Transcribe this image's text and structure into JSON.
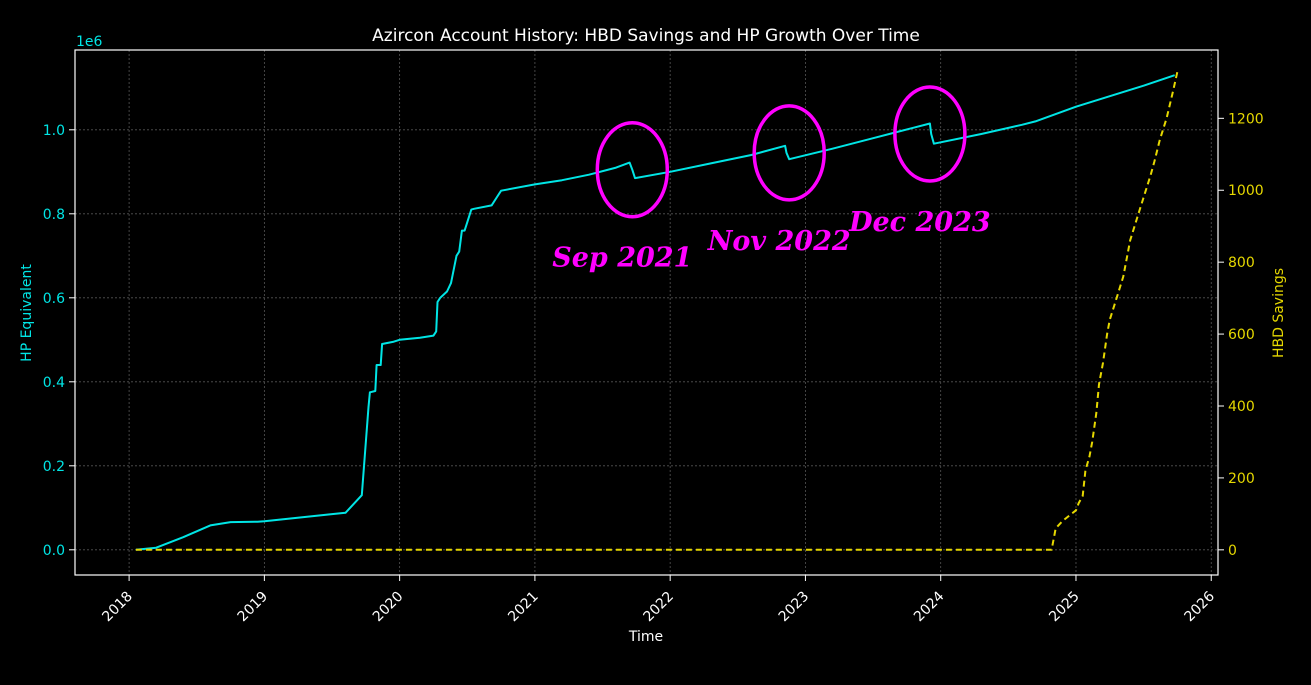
{
  "chart_data": {
    "type": "line",
    "title": "Azircon Account History: HBD Savings and HP Growth Over Time",
    "xlabel": "Time",
    "ylabel_left": "HP Equivalent",
    "ylabel_right": "HBD Savings",
    "left_scale_label": "1e6",
    "x_ticks": [
      "2018",
      "2019",
      "2020",
      "2021",
      "2022",
      "2023",
      "2024",
      "2025",
      "2026"
    ],
    "y_left_ticks": [
      "0.0",
      "0.2",
      "0.4",
      "0.6",
      "0.8",
      "1.0"
    ],
    "y_right_ticks": [
      "0",
      "200",
      "400",
      "600",
      "800",
      "1000",
      "1200"
    ],
    "xlim": [
      2017.6,
      2026.05
    ],
    "ylim_left": [
      -0.06,
      1.19
    ],
    "ylim_right": [
      -70,
      1390
    ],
    "grid": true,
    "colors": {
      "hp": "#00e5e5",
      "hbd": "#e6d800",
      "annotation": "#ff00ff",
      "grid": "#555555",
      "axis": "#ffffff"
    },
    "series": [
      {
        "name": "HP Equivalent",
        "axis": "left",
        "style": "solid",
        "x": [
          2018.05,
          2018.2,
          2018.4,
          2018.6,
          2018.75,
          2018.95,
          2019.0,
          2019.5,
          2019.6,
          2019.72,
          2019.77,
          2019.78,
          2019.82,
          2019.83,
          2019.86,
          2019.87,
          2019.95,
          2020.0,
          2020.15,
          2020.25,
          2020.27,
          2020.28,
          2020.3,
          2020.35,
          2020.38,
          2020.42,
          2020.44,
          2020.46,
          2020.48,
          2020.5,
          2020.53,
          2020.55,
          2020.68,
          2020.72,
          2020.75,
          2021.0,
          2021.2,
          2021.4,
          2021.6,
          2021.7,
          2021.72,
          2021.74,
          2022.0,
          2022.3,
          2022.6,
          2022.85,
          2022.86,
          2022.88,
          2023.2,
          2023.5,
          2023.8,
          2023.92,
          2023.93,
          2023.95,
          2024.3,
          2024.6,
          2024.7,
          2025.0,
          2025.3,
          2025.5,
          2025.73
        ],
        "values": [
          0.0,
          0.005,
          0.03,
          0.058,
          0.066,
          0.067,
          0.068,
          0.085,
          0.088,
          0.13,
          0.34,
          0.375,
          0.378,
          0.44,
          0.44,
          0.49,
          0.495,
          0.5,
          0.505,
          0.51,
          0.52,
          0.59,
          0.6,
          0.615,
          0.635,
          0.7,
          0.71,
          0.76,
          0.76,
          0.78,
          0.81,
          0.812,
          0.82,
          0.84,
          0.855,
          0.87,
          0.88,
          0.893,
          0.91,
          0.922,
          0.905,
          0.885,
          0.9,
          0.92,
          0.94,
          0.962,
          0.945,
          0.93,
          0.955,
          0.98,
          1.005,
          1.015,
          0.99,
          0.967,
          0.99,
          1.012,
          1.02,
          1.055,
          1.085,
          1.105,
          1.13
        ]
      },
      {
        "name": "HBD Savings",
        "axis": "right",
        "style": "dashed",
        "x": [
          2018.05,
          2024.82,
          2024.85,
          2024.9,
          2024.95,
          2025.0,
          2025.02,
          2025.05,
          2025.07,
          2025.1,
          2025.12,
          2025.15,
          2025.17,
          2025.2,
          2025.23,
          2025.25,
          2025.3,
          2025.35,
          2025.38,
          2025.4,
          2025.45,
          2025.5,
          2025.55,
          2025.58,
          2025.62,
          2025.67,
          2025.72,
          2025.75
        ],
        "values": [
          0,
          0,
          60,
          80,
          95,
          110,
          130,
          150,
          220,
          260,
          300,
          380,
          460,
          520,
          600,
          640,
          700,
          760,
          820,
          860,
          920,
          980,
          1040,
          1080,
          1140,
          1200,
          1280,
          1330
        ]
      }
    ],
    "annotations": [
      {
        "label": "Sep 2021",
        "x": 2021.72,
        "y": 0.905
      },
      {
        "label": "Nov 2022",
        "x": 2022.88,
        "y": 0.945
      },
      {
        "label": "Dec 2023",
        "x": 2023.92,
        "y": 0.99
      }
    ]
  }
}
